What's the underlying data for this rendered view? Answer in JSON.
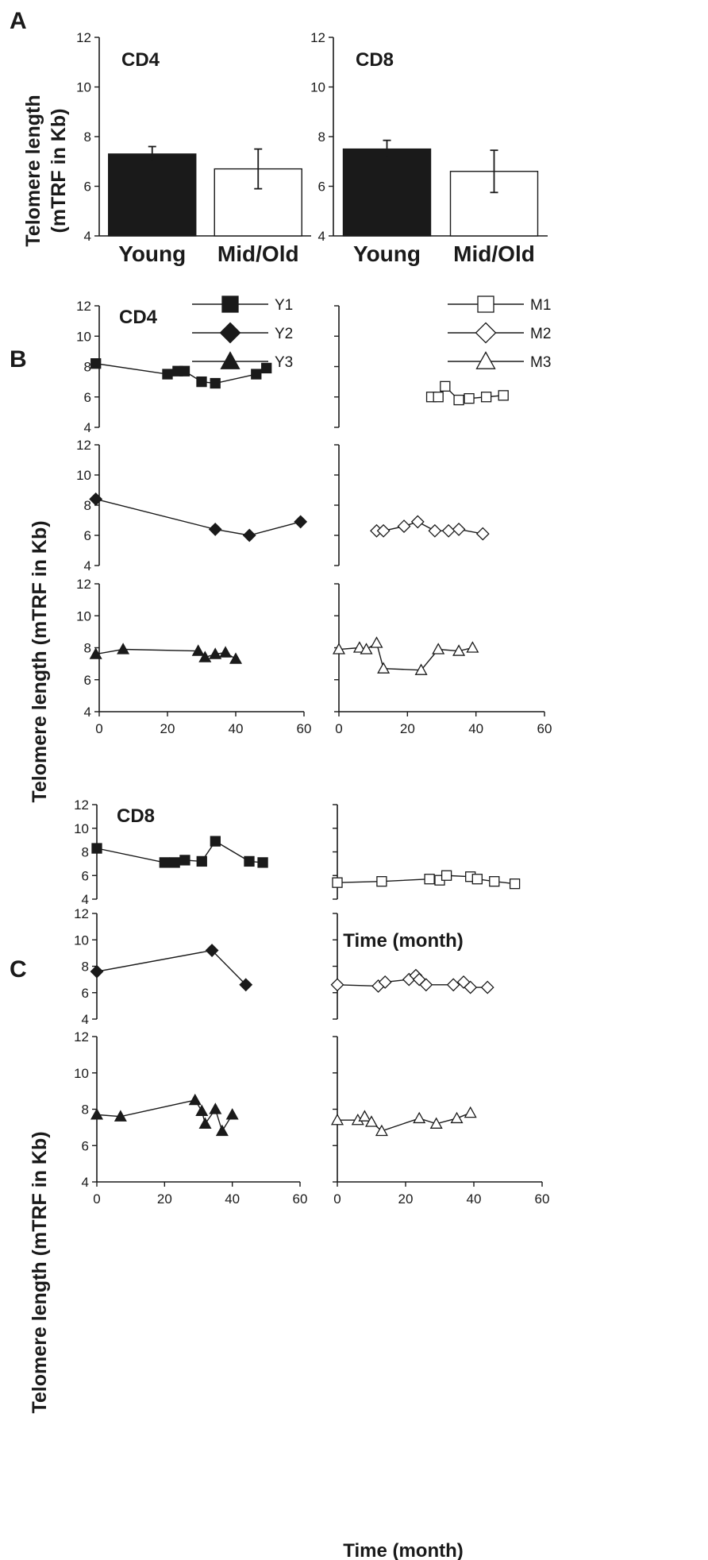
{
  "panels": {
    "A": "A",
    "B": "B",
    "C": "C"
  },
  "labels": {
    "ylabel_A": "Telomere length",
    "ylabel_A_sub": "(mTRF in Kb)",
    "ylabel_B": "Telomere length (mTRF in Kb)",
    "ylabel_C": "Telomere length (mTRF in Kb)",
    "xlabel": "Time (month)"
  },
  "chart_data": [
    {
      "id": "A-CD4",
      "type": "bar",
      "title": "CD4",
      "categories": [
        "Young",
        "Mid/Old"
      ],
      "values": [
        7.3,
        6.7
      ],
      "errors": [
        0.3,
        0.8
      ],
      "fills": [
        "#1a1a1a",
        "#ffffff"
      ],
      "ylabel": "Telomere length (mTRF in Kb)",
      "ylim": [
        4,
        12
      ],
      "yticks": [
        4,
        6,
        8,
        10,
        12
      ]
    },
    {
      "id": "A-CD8",
      "type": "bar",
      "title": "CD8",
      "categories": [
        "Young",
        "Mid/Old"
      ],
      "values": [
        7.5,
        6.6
      ],
      "errors": [
        0.35,
        0.85
      ],
      "fills": [
        "#1a1a1a",
        "#ffffff"
      ],
      "ylim": [
        4,
        12
      ],
      "yticks": [
        4,
        6,
        8,
        10,
        12
      ]
    },
    {
      "id": "B-CD4-young",
      "type": "line",
      "title": "CD4",
      "xlabel": "Time (month)",
      "ylabel": "Telomere length (mTRF in Kb)",
      "xlim": [
        0,
        60
      ],
      "xticks": [
        0,
        20,
        40,
        60
      ],
      "ylim": [
        4,
        12
      ],
      "yticks": [
        4,
        6,
        8,
        10,
        12
      ],
      "legend": [
        {
          "name": "Y1",
          "marker": "square",
          "fill": "#1a1a1a"
        },
        {
          "name": "Y2",
          "marker": "diamond",
          "fill": "#1a1a1a"
        },
        {
          "name": "Y3",
          "marker": "triangle",
          "fill": "#1a1a1a"
        }
      ],
      "series": [
        {
          "name": "Y1",
          "marker": "square",
          "fill": "#1a1a1a",
          "x": [
            -1,
            20,
            23,
            25,
            30,
            34,
            46,
            49
          ],
          "y": [
            8.2,
            7.5,
            7.7,
            7.7,
            7.0,
            6.9,
            7.5,
            7.9
          ]
        },
        {
          "name": "Y2",
          "marker": "diamond",
          "fill": "#1a1a1a",
          "x": [
            -1,
            34,
            44,
            59
          ],
          "y": [
            8.4,
            6.4,
            6.0,
            6.9
          ]
        },
        {
          "name": "Y3",
          "marker": "triangle",
          "fill": "#1a1a1a",
          "x": [
            -1,
            7,
            29,
            31,
            34,
            37,
            40
          ],
          "y": [
            7.6,
            7.9,
            7.8,
            7.4,
            7.6,
            7.7,
            7.3
          ]
        }
      ]
    },
    {
      "id": "B-CD4-mid",
      "type": "line",
      "xlabel": "Time (month)",
      "xlim": [
        0,
        60
      ],
      "xticks": [
        0,
        20,
        40,
        60
      ],
      "ylim": [
        4,
        12
      ],
      "legend": [
        {
          "name": "M1",
          "marker": "square",
          "fill": "#ffffff"
        },
        {
          "name": "M2",
          "marker": "diamond",
          "fill": "#ffffff"
        },
        {
          "name": "M3",
          "marker": "triangle",
          "fill": "#ffffff"
        }
      ],
      "series": [
        {
          "name": "M1",
          "marker": "square",
          "fill": "#ffffff",
          "x": [
            27,
            29,
            31,
            35,
            38,
            43,
            48
          ],
          "y": [
            6.0,
            6.0,
            6.7,
            5.8,
            5.9,
            6.0,
            6.1
          ]
        },
        {
          "name": "M2",
          "marker": "diamond",
          "fill": "#ffffff",
          "x": [
            11,
            13,
            19,
            23,
            28,
            32,
            35,
            42
          ],
          "y": [
            6.3,
            6.3,
            6.6,
            6.9,
            6.3,
            6.3,
            6.4,
            6.1
          ]
        },
        {
          "name": "M3",
          "marker": "triangle",
          "fill": "#ffffff",
          "x": [
            0,
            6,
            8,
            11,
            13,
            24,
            29,
            35,
            39
          ],
          "y": [
            7.9,
            8.0,
            7.9,
            8.3,
            6.7,
            6.6,
            7.9,
            7.8,
            8.0
          ]
        }
      ]
    },
    {
      "id": "C-CD8-young",
      "type": "line",
      "title": "CD8",
      "xlabel": "Time (month)",
      "ylabel": "Telomere length (mTRF in Kb)",
      "xlim": [
        0,
        60
      ],
      "xticks": [
        0,
        20,
        40,
        60
      ],
      "ylim": [
        4,
        12
      ],
      "yticks": [
        4,
        6,
        8,
        10,
        12
      ],
      "series": [
        {
          "name": "Y1",
          "marker": "square",
          "fill": "#1a1a1a",
          "x": [
            0,
            20,
            23,
            26,
            31,
            35,
            45,
            49
          ],
          "y": [
            8.3,
            7.1,
            7.1,
            7.3,
            7.2,
            8.9,
            7.2,
            7.1
          ]
        },
        {
          "name": "Y2",
          "marker": "diamond",
          "fill": "#1a1a1a",
          "x": [
            0,
            34,
            44
          ],
          "y": [
            7.6,
            9.2,
            6.6
          ]
        },
        {
          "name": "Y3",
          "marker": "triangle",
          "fill": "#1a1a1a",
          "x": [
            0,
            7,
            29,
            31,
            32,
            35,
            37,
            40
          ],
          "y": [
            7.7,
            7.6,
            8.5,
            7.9,
            7.2,
            8.0,
            6.8,
            7.7
          ]
        }
      ]
    },
    {
      "id": "C-CD8-mid",
      "type": "line",
      "xlabel": "Time (month)",
      "xlim": [
        0,
        60
      ],
      "xticks": [
        0,
        20,
        40,
        60
      ],
      "ylim": [
        4,
        12
      ],
      "series": [
        {
          "name": "M1",
          "marker": "square",
          "fill": "#ffffff",
          "x": [
            0,
            13,
            27,
            30,
            32,
            39,
            41,
            46,
            52
          ],
          "y": [
            5.4,
            5.5,
            5.7,
            5.6,
            6.0,
            5.9,
            5.7,
            5.5,
            5.3
          ]
        },
        {
          "name": "M2",
          "marker": "diamond",
          "fill": "#ffffff",
          "x": [
            0,
            12,
            14,
            21,
            23,
            24,
            26,
            34,
            37,
            39,
            44
          ],
          "y": [
            6.6,
            6.5,
            6.8,
            7.0,
            7.3,
            7.0,
            6.6,
            6.6,
            6.8,
            6.4,
            6.4
          ]
        },
        {
          "name": "M3",
          "marker": "triangle",
          "fill": "#ffffff",
          "x": [
            0,
            6,
            8,
            10,
            13,
            24,
            29,
            35,
            39
          ],
          "y": [
            7.4,
            7.4,
            7.6,
            7.3,
            6.8,
            7.5,
            7.2,
            7.5,
            7.8
          ]
        }
      ]
    }
  ]
}
